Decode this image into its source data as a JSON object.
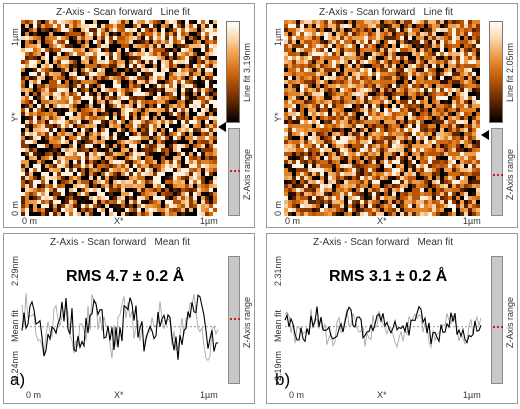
{
  "panel_a": {
    "image_title": "Z-Axis - Scan forward   Line fit",
    "profile_title": "Z-Axis - Scan forward   Mean fit",
    "x_start": "0 m",
    "x_mid": "X*",
    "x_end": "1µm",
    "y_top": "1µm",
    "y_mid": "Y*",
    "y_bottom": "0 m",
    "colorbar_label": "Line fit 3.19nm",
    "range_label": "Z-Axis range",
    "profile_top": "2.29nm",
    "profile_mid": "Mean fit",
    "profile_bottom": "-2.24nm",
    "profile_range_label": "Z-Axis range",
    "rms": "RMS 4.7 ± 0.2 Å",
    "letter": "a)"
  },
  "panel_b": {
    "image_title": "Z-Axis - Scan forward   Line fit",
    "profile_title": "Z-Axis - Scan forward   Mean fit",
    "x_start": "0 m",
    "x_mid": "X*",
    "x_end": "1µm",
    "y_top": "1µm",
    "y_mid": "Y*",
    "y_bottom": "0 m",
    "colorbar_label": "Line fit 2.05nm",
    "range_label": "Z-Axis range",
    "profile_top": "2.31nm",
    "profile_mid": "Mean fit",
    "profile_bottom": "-2.19nm",
    "profile_range_label": "Z-Axis range",
    "rms": "RMS 3.1 ± 0.2 Å",
    "letter": "b)"
  },
  "colors": {
    "afm_mid": "#d06a10",
    "profile_dark": "#000000",
    "profile_light": "#a8a8a8",
    "marker": "#cc2222"
  }
}
